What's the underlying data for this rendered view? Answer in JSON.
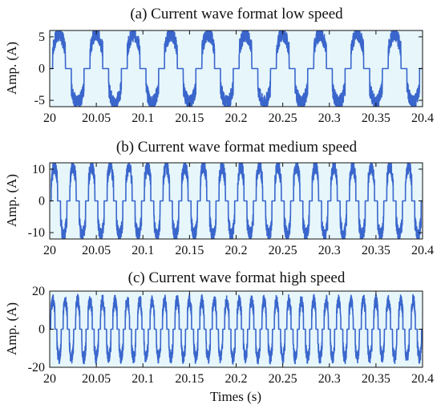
{
  "chart_data": [
    {
      "type": "line",
      "title": "(a) Current wave format low speed",
      "ylabel": "Amp. (A)",
      "xlabel": "",
      "xlim": [
        20,
        20.4
      ],
      "ylim": [
        -6,
        6
      ],
      "xticks": [
        "20",
        "20.05",
        "20.1",
        "20.15",
        "20.2",
        "20.25",
        "20.3",
        "20.35",
        "20.4"
      ],
      "yticks": [
        "-5",
        "0",
        "5"
      ],
      "ytick_values": [
        -5,
        0,
        5
      ],
      "series": [
        {
          "name": "",
          "amplitude_peak": 5.5,
          "frequency_hz": 25,
          "color": "#3a66cc"
        }
      ],
      "grid": false
    },
    {
      "type": "line",
      "title": "(b) Current wave format medium speed",
      "ylabel": "Amp. (A)",
      "xlabel": "",
      "xlim": [
        20,
        20.4
      ],
      "ylim": [
        -12,
        12
      ],
      "xticks": [
        "20",
        "20.05",
        "20.1",
        "20.15",
        "20.2",
        "20.25",
        "20.3",
        "20.35",
        "20.4"
      ],
      "yticks": [
        "-10",
        "0",
        "10"
      ],
      "ytick_values": [
        -10,
        0,
        10
      ],
      "series": [
        {
          "name": "",
          "amplitude_peak": 11,
          "frequency_hz": 50,
          "color": "#3a66cc"
        }
      ],
      "grid": false
    },
    {
      "type": "line",
      "title": "(c) Current wave format high speed",
      "ylabel": "Amp. (A)",
      "xlabel": "Times (s)",
      "xlim": [
        20,
        20.4
      ],
      "ylim": [
        -20,
        20
      ],
      "xticks": [
        "20",
        "20.05",
        "20.1",
        "20.15",
        "20.2",
        "20.25",
        "20.3",
        "20.35",
        "20.4"
      ],
      "yticks": [
        "-20",
        "0",
        "20"
      ],
      "ytick_values": [
        -20,
        0,
        20
      ],
      "series": [
        {
          "name": "",
          "amplitude_peak": 15,
          "frequency_hz": 75,
          "color": "#3a66cc"
        }
      ],
      "grid": false
    }
  ],
  "colors": {
    "plot_background": "#e6f6fb",
    "line": "#3a66cc",
    "axis": "#111111"
  }
}
